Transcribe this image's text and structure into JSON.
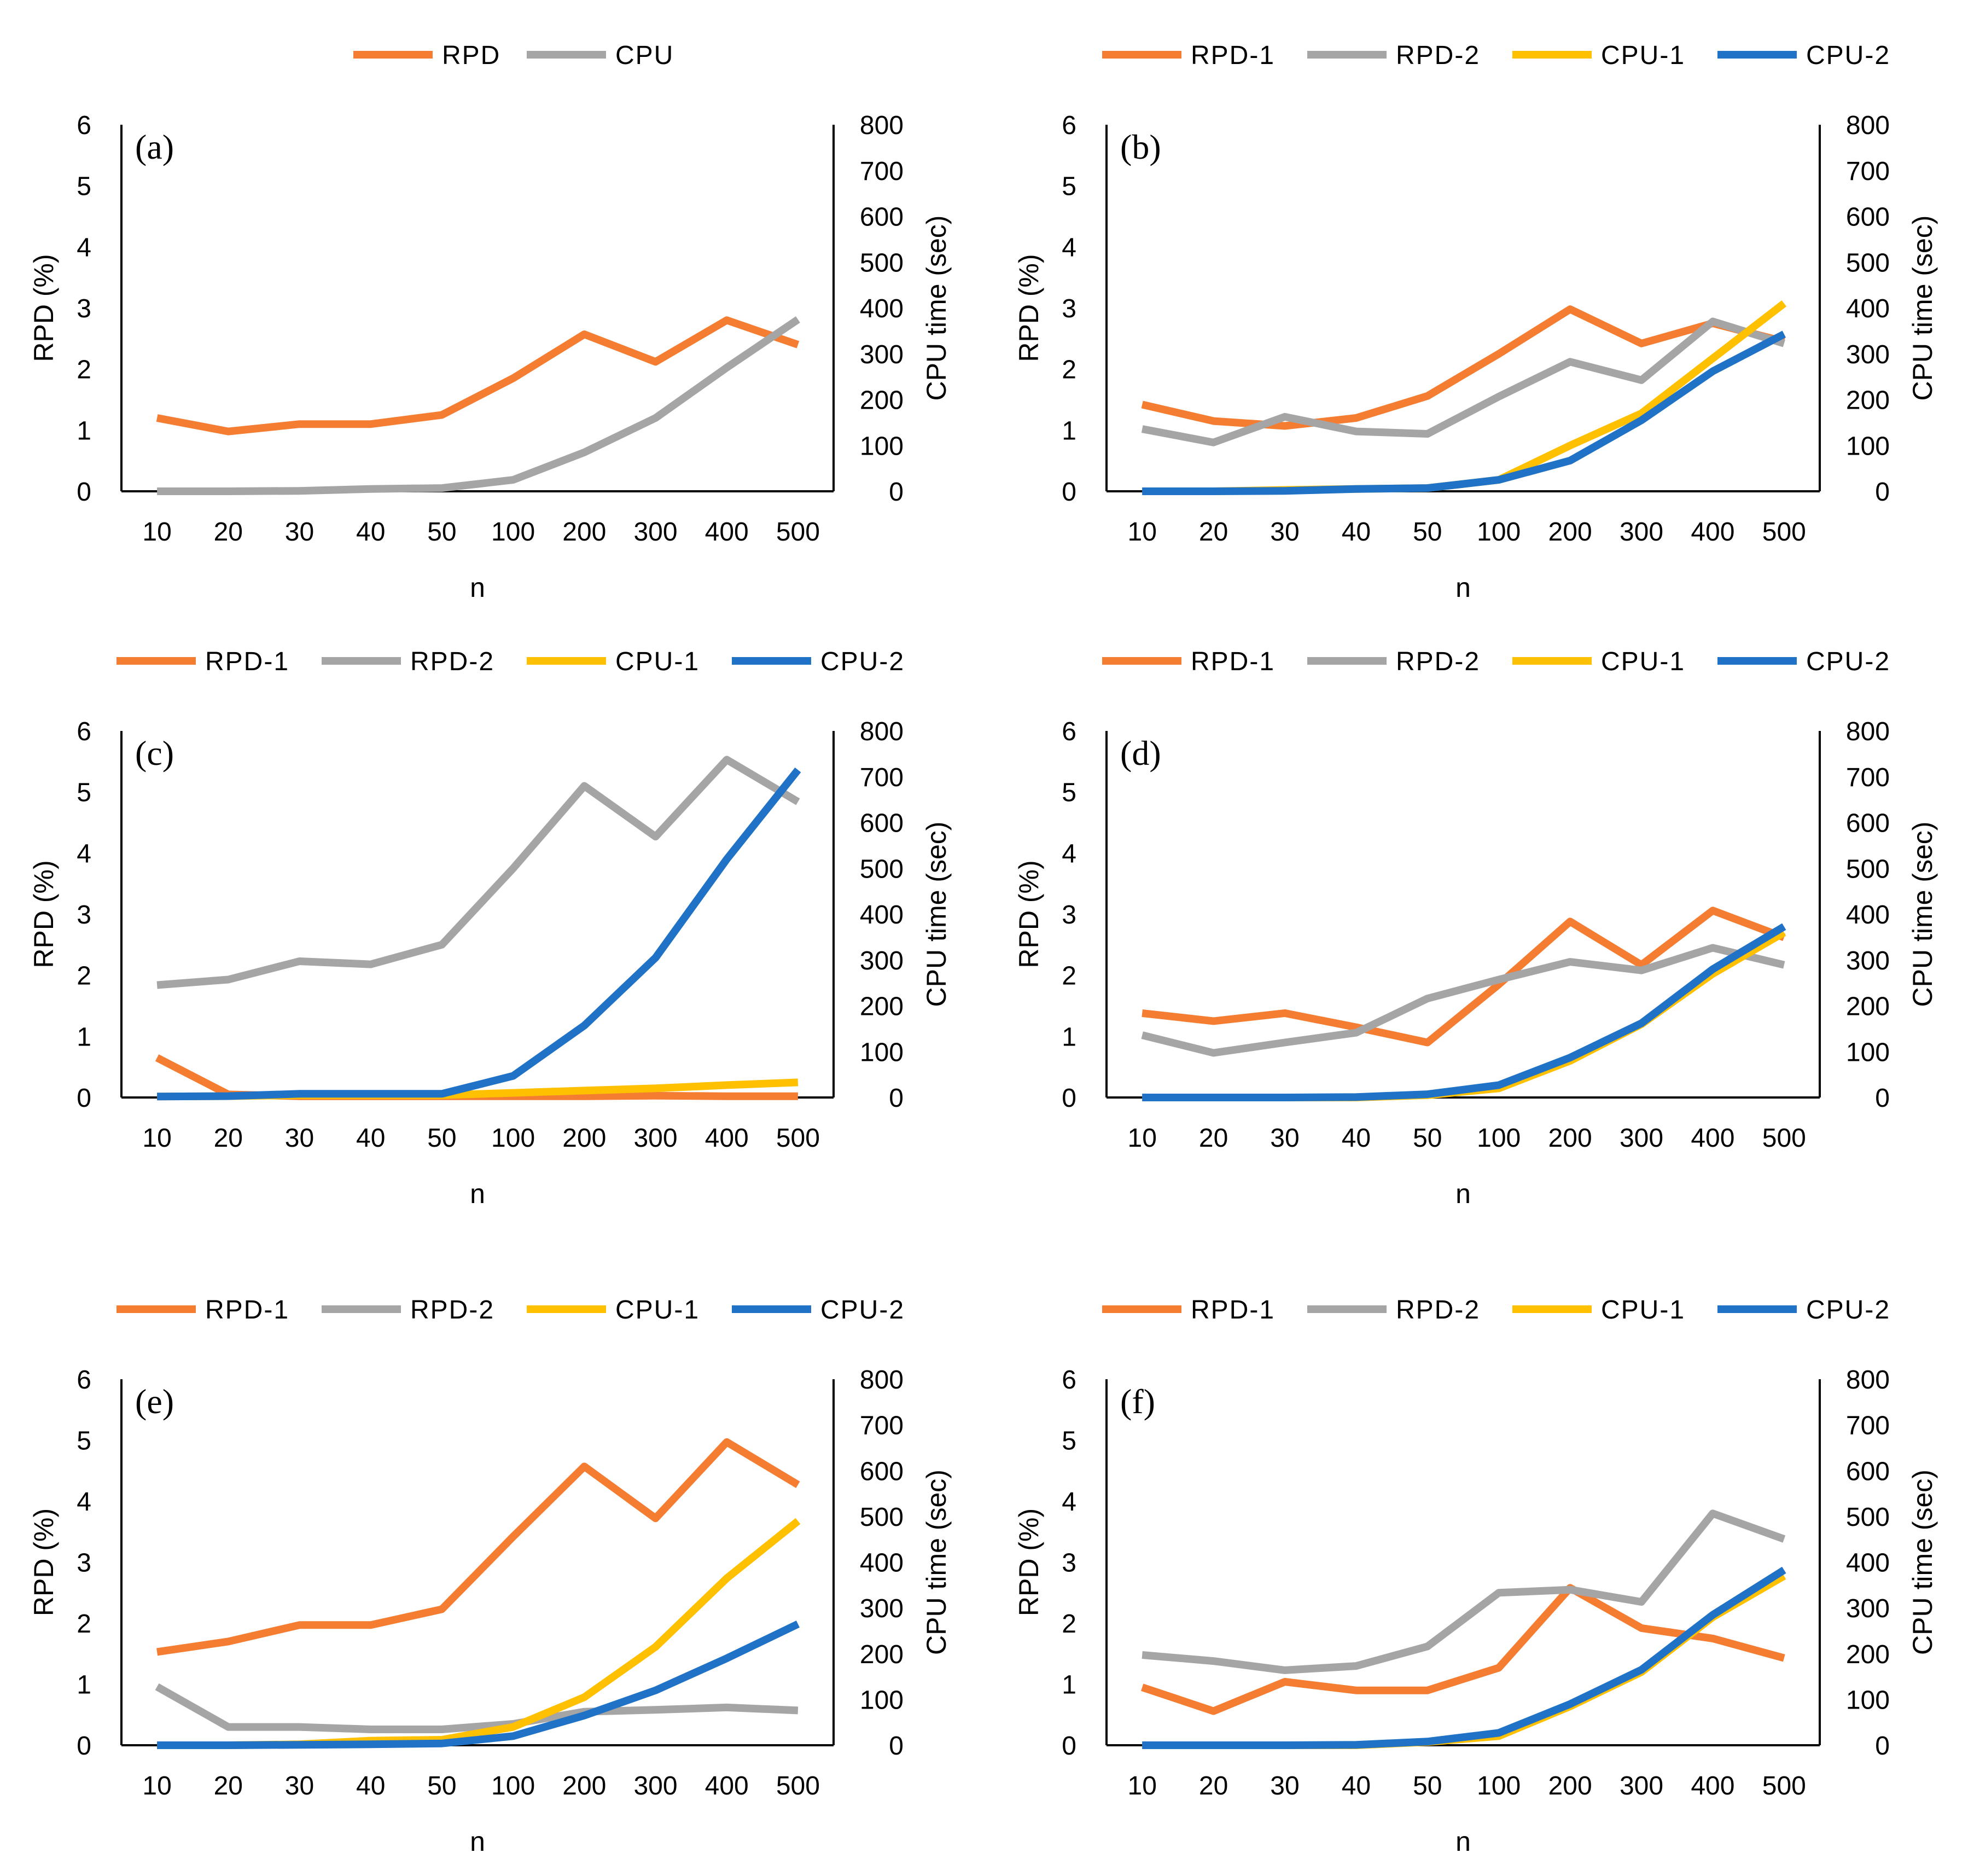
{
  "colors": {
    "orange": "#F47D32",
    "gray": "#A5A5A5",
    "yellow": "#FFC000",
    "blue": "#1F72C6"
  },
  "chart_data": [
    {
      "type": "line",
      "panel_label": "(a)",
      "categories": [
        "10",
        "20",
        "30",
        "40",
        "50",
        "100",
        "200",
        "300",
        "400",
        "500"
      ],
      "xlabel": "n",
      "ylabel": "RPD (%)",
      "y2label": "CPU time (sec)",
      "ylim": [
        0,
        6
      ],
      "y2lim": [
        0,
        800
      ],
      "yticks": [
        "0",
        "1",
        "2",
        "3",
        "4",
        "5",
        "6"
      ],
      "y2ticks": [
        "0",
        "100",
        "200",
        "300",
        "400",
        "500",
        "600",
        "700",
        "800"
      ],
      "legend_position": "top",
      "series": [
        {
          "name": "RPD",
          "axis": "left",
          "color": "orange",
          "values": [
            1.2,
            0.98,
            1.1,
            1.1,
            1.25,
            1.85,
            2.57,
            2.12,
            2.8,
            2.4
          ]
        },
        {
          "name": "CPU",
          "axis": "right",
          "color": "gray",
          "values": [
            0,
            0,
            1,
            5,
            7,
            25,
            85,
            160,
            270,
            375
          ]
        }
      ]
    },
    {
      "type": "line",
      "panel_label": "(b)",
      "categories": [
        "10",
        "20",
        "30",
        "40",
        "50",
        "100",
        "200",
        "300",
        "400",
        "500"
      ],
      "xlabel": "n",
      "ylabel": "RPD (%)",
      "y2label": "CPU time (sec)",
      "ylim": [
        0,
        6
      ],
      "y2lim": [
        0,
        800
      ],
      "yticks": [
        "0",
        "1",
        "2",
        "3",
        "4",
        "5",
        "6"
      ],
      "y2ticks": [
        "0",
        "100",
        "200",
        "300",
        "400",
        "500",
        "600",
        "700",
        "800"
      ],
      "legend_position": "top",
      "series": [
        {
          "name": "RPD-1",
          "axis": "left",
          "color": "orange",
          "values": [
            1.42,
            1.15,
            1.07,
            1.2,
            1.56,
            2.25,
            2.98,
            2.42,
            2.75,
            2.45
          ]
        },
        {
          "name": "RPD-2",
          "axis": "left",
          "color": "gray",
          "values": [
            1.02,
            0.8,
            1.22,
            0.98,
            0.94,
            1.55,
            2.12,
            1.82,
            2.78,
            2.42
          ]
        },
        {
          "name": "CPU-1",
          "axis": "right",
          "color": "yellow",
          "values": [
            0,
            0,
            3,
            5,
            7,
            25,
            100,
            170,
            290,
            410
          ]
        },
        {
          "name": "CPU-2",
          "axis": "right",
          "color": "blue",
          "values": [
            0,
            0,
            1,
            5,
            7,
            25,
            67,
            155,
            262,
            343
          ]
        }
      ]
    },
    {
      "type": "line",
      "panel_label": "(c)",
      "categories": [
        "10",
        "20",
        "30",
        "40",
        "50",
        "100",
        "200",
        "300",
        "400",
        "500"
      ],
      "xlabel": "n",
      "ylabel": "RPD (%)",
      "y2label": "CPU time (sec)",
      "ylim": [
        0,
        6
      ],
      "y2lim": [
        0,
        800
      ],
      "yticks": [
        "0",
        "1",
        "2",
        "3",
        "4",
        "5",
        "6"
      ],
      "y2ticks": [
        "0",
        "100",
        "200",
        "300",
        "400",
        "500",
        "600",
        "700",
        "800"
      ],
      "legend_position": "top",
      "series": [
        {
          "name": "RPD-1",
          "axis": "left",
          "color": "orange",
          "values": [
            0.65,
            0.05,
            0.02,
            0.02,
            0.02,
            0.02,
            0.02,
            0.03,
            0.02,
            0.02
          ]
        },
        {
          "name": "RPD-2",
          "axis": "left",
          "color": "gray",
          "values": [
            1.84,
            1.93,
            2.23,
            2.18,
            2.5,
            3.75,
            5.1,
            4.27,
            5.53,
            4.84
          ]
        },
        {
          "name": "CPU-1",
          "axis": "right",
          "color": "yellow",
          "values": [
            2,
            3,
            5,
            5,
            5,
            10,
            15,
            20,
            27,
            33
          ]
        },
        {
          "name": "CPU-2",
          "axis": "right",
          "color": "blue",
          "values": [
            2,
            3,
            8,
            8,
            8,
            47,
            157,
            305,
            520,
            715
          ]
        }
      ]
    },
    {
      "type": "line",
      "panel_label": "(d)",
      "categories": [
        "10",
        "20",
        "30",
        "40",
        "50",
        "100",
        "200",
        "300",
        "400",
        "500"
      ],
      "xlabel": "n",
      "ylabel": "RPD (%)",
      "y2label": "CPU time (sec)",
      "ylim": [
        0,
        6
      ],
      "y2lim": [
        0,
        800
      ],
      "yticks": [
        "0",
        "1",
        "2",
        "3",
        "4",
        "5",
        "6"
      ],
      "y2ticks": [
        "0",
        "100",
        "200",
        "300",
        "400",
        "500",
        "600",
        "700",
        "800"
      ],
      "legend_position": "top",
      "series": [
        {
          "name": "RPD-1",
          "axis": "left",
          "color": "orange",
          "values": [
            1.38,
            1.25,
            1.38,
            1.15,
            0.9,
            1.85,
            2.88,
            2.17,
            3.06,
            2.62
          ]
        },
        {
          "name": "RPD-2",
          "axis": "left",
          "color": "gray",
          "values": [
            1.02,
            0.73,
            0.9,
            1.06,
            1.62,
            1.93,
            2.22,
            2.08,
            2.45,
            2.17
          ]
        },
        {
          "name": "CPU-1",
          "axis": "right",
          "color": "yellow",
          "values": [
            0,
            0,
            0,
            0,
            5,
            20,
            80,
            160,
            270,
            360
          ]
        },
        {
          "name": "CPU-2",
          "axis": "right",
          "color": "blue",
          "values": [
            0,
            0,
            0,
            1,
            7,
            27,
            87,
            162,
            280,
            373
          ]
        }
      ]
    },
    {
      "type": "line",
      "panel_label": "(e)",
      "categories": [
        "10",
        "20",
        "30",
        "40",
        "50",
        "100",
        "200",
        "300",
        "400",
        "500"
      ],
      "xlabel": "n",
      "ylabel": "RPD (%)",
      "y2label": "CPU time (sec)",
      "ylim": [
        0,
        6
      ],
      "y2lim": [
        0,
        800
      ],
      "yticks": [
        "0",
        "1",
        "2",
        "3",
        "4",
        "5",
        "6"
      ],
      "y2ticks": [
        "0",
        "100",
        "200",
        "300",
        "400",
        "500",
        "600",
        "700",
        "800"
      ],
      "legend_position": "top",
      "series": [
        {
          "name": "RPD-1",
          "axis": "left",
          "color": "orange",
          "values": [
            1.53,
            1.7,
            1.97,
            1.97,
            2.23,
            3.42,
            4.57,
            3.72,
            4.97,
            4.27
          ]
        },
        {
          "name": "RPD-2",
          "axis": "left",
          "color": "gray",
          "values": [
            0.96,
            0.3,
            0.3,
            0.26,
            0.26,
            0.35,
            0.55,
            0.58,
            0.62,
            0.57
          ]
        },
        {
          "name": "CPU-1",
          "axis": "right",
          "color": "yellow",
          "values": [
            0,
            0,
            2,
            10,
            12,
            40,
            105,
            215,
            365,
            490
          ]
        },
        {
          "name": "CPU-2",
          "axis": "right",
          "color": "blue",
          "values": [
            0,
            0,
            1,
            2,
            4,
            20,
            65,
            120,
            190,
            265
          ]
        }
      ]
    },
    {
      "type": "line",
      "panel_label": "(f)",
      "categories": [
        "10",
        "20",
        "30",
        "40",
        "50",
        "100",
        "200",
        "300",
        "400",
        "500"
      ],
      "xlabel": "n",
      "ylabel": "RPD (%)",
      "y2label": "CPU time (sec)",
      "ylim": [
        0,
        6
      ],
      "y2lim": [
        0,
        800
      ],
      "yticks": [
        "0",
        "1",
        "2",
        "3",
        "4",
        "5",
        "6"
      ],
      "y2ticks": [
        "0",
        "100",
        "200",
        "300",
        "400",
        "500",
        "600",
        "700",
        "800"
      ],
      "legend_position": "top",
      "series": [
        {
          "name": "RPD-1",
          "axis": "left",
          "color": "orange",
          "values": [
            0.95,
            0.56,
            1.04,
            0.9,
            0.9,
            1.27,
            2.58,
            1.92,
            1.75,
            1.43
          ]
        },
        {
          "name": "RPD-2",
          "axis": "left",
          "color": "gray",
          "values": [
            1.48,
            1.38,
            1.23,
            1.3,
            1.62,
            2.5,
            2.55,
            2.35,
            3.8,
            3.38
          ]
        },
        {
          "name": "CPU-1",
          "axis": "right",
          "color": "yellow",
          "values": [
            0,
            0,
            0,
            0,
            7,
            20,
            85,
            160,
            280,
            370
          ]
        },
        {
          "name": "CPU-2",
          "axis": "right",
          "color": "blue",
          "values": [
            0,
            0,
            0,
            1,
            8,
            27,
            90,
            165,
            285,
            383
          ]
        }
      ]
    }
  ]
}
